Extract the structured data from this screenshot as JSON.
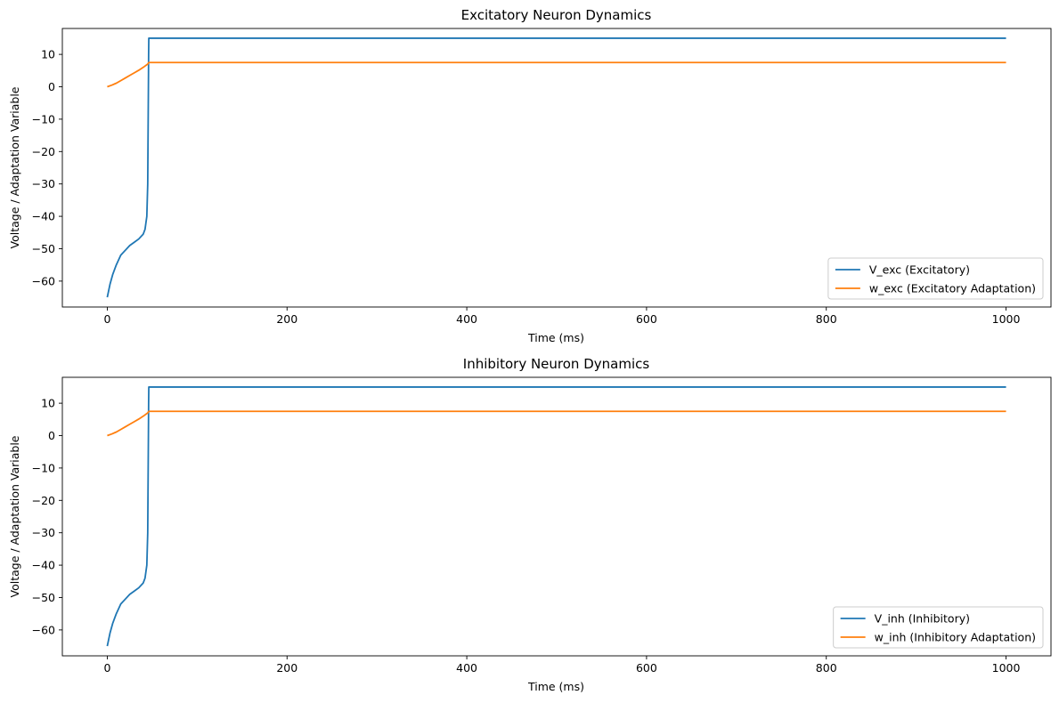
{
  "chart_data": [
    {
      "type": "line",
      "title": "Excitatory Neuron Dynamics",
      "xlabel": "Time (ms)",
      "ylabel": "Voltage / Adaptation Variable",
      "xlim": [
        -50,
        1050
      ],
      "ylim": [
        -68,
        18
      ],
      "xticks": [
        0,
        200,
        400,
        600,
        800,
        1000
      ],
      "xtick_labels": [
        "0",
        "200",
        "400",
        "600",
        "800",
        "1000"
      ],
      "yticks": [
        10,
        0,
        -10,
        -20,
        -30,
        -40,
        -50,
        -60
      ],
      "ytick_labels": [
        "10",
        "0",
        "−10",
        "−20",
        "−30",
        "−40",
        "−50",
        "−60"
      ],
      "legend_position": "lower right",
      "series": [
        {
          "name": "V_exc (Excitatory)",
          "color": "#1f77b4",
          "x": [
            0,
            3,
            6,
            10,
            15,
            20,
            25,
            30,
            35,
            40,
            42,
            44,
            45,
            45.5,
            46,
            46.2,
            1000
          ],
          "y": [
            -65,
            -61,
            -58,
            -55,
            -52,
            -50.5,
            -49,
            -48,
            -47,
            -45.5,
            -44,
            -40,
            -30,
            -10,
            10,
            15,
            15
          ]
        },
        {
          "name": "w_exc (Excitatory Adaptation)",
          "color": "#ff7f0e",
          "x": [
            0,
            5,
            10,
            15,
            20,
            25,
            30,
            35,
            40,
            45,
            46.2,
            1000
          ],
          "y": [
            0,
            0.5,
            1.1,
            1.9,
            2.7,
            3.5,
            4.3,
            5.1,
            6.0,
            7.0,
            7.5,
            7.5
          ]
        }
      ]
    },
    {
      "type": "line",
      "title": "Inhibitory Neuron Dynamics",
      "xlabel": "Time (ms)",
      "ylabel": "Voltage / Adaptation Variable",
      "xlim": [
        -50,
        1050
      ],
      "ylim": [
        -68,
        18
      ],
      "xticks": [
        0,
        200,
        400,
        600,
        800,
        1000
      ],
      "xtick_labels": [
        "0",
        "200",
        "400",
        "600",
        "800",
        "1000"
      ],
      "yticks": [
        10,
        0,
        -10,
        -20,
        -30,
        -40,
        -50,
        -60
      ],
      "ytick_labels": [
        "10",
        "0",
        "−10",
        "−20",
        "−30",
        "−40",
        "−50",
        "−60"
      ],
      "legend_position": "lower right",
      "series": [
        {
          "name": "V_inh (Inhibitory)",
          "color": "#1f77b4",
          "x": [
            0,
            3,
            6,
            10,
            15,
            20,
            25,
            30,
            35,
            40,
            42,
            44,
            45,
            45.5,
            46,
            46.2,
            1000
          ],
          "y": [
            -65,
            -61,
            -58,
            -55,
            -52,
            -50.5,
            -49,
            -48,
            -47,
            -45.5,
            -44,
            -40,
            -30,
            -10,
            10,
            15,
            15
          ]
        },
        {
          "name": "w_inh (Inhibitory Adaptation)",
          "color": "#ff7f0e",
          "x": [
            0,
            5,
            10,
            15,
            20,
            25,
            30,
            35,
            40,
            45,
            46.2,
            1000
          ],
          "y": [
            0,
            0.5,
            1.1,
            1.9,
            2.7,
            3.5,
            4.3,
            5.1,
            6.0,
            7.0,
            7.5,
            7.5
          ]
        }
      ]
    }
  ]
}
